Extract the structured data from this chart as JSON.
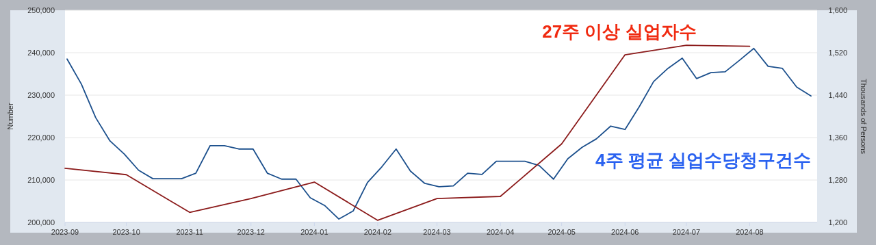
{
  "chart_data": {
    "type": "line",
    "ylabel": "Number",
    "y2label": "Thousands of Persons",
    "xlim": [
      "2023-09-01",
      "2024-09-03"
    ],
    "xticks": [
      {
        "value": "2023-09-01",
        "label": "2023-09"
      },
      {
        "value": "2023-10-01",
        "label": "2023-10"
      },
      {
        "value": "2023-11-01",
        "label": "2023-11"
      },
      {
        "value": "2023-12-01",
        "label": "2023-12"
      },
      {
        "value": "2024-01-01",
        "label": "2024-01"
      },
      {
        "value": "2024-02-01",
        "label": "2024-02"
      },
      {
        "value": "2024-03-01",
        "label": "2024-03"
      },
      {
        "value": "2024-04-01",
        "label": "2024-04"
      },
      {
        "value": "2024-05-01",
        "label": "2024-05"
      },
      {
        "value": "2024-06-01",
        "label": "2024-06"
      },
      {
        "value": "2024-07-01",
        "label": "2024-07"
      },
      {
        "value": "2024-08-01",
        "label": "2024-08"
      }
    ],
    "ylim": [
      200000,
      250000
    ],
    "yticks": [
      {
        "value": 200000,
        "label": "200,000"
      },
      {
        "value": 210000,
        "label": "210,000"
      },
      {
        "value": 220000,
        "label": "220,000"
      },
      {
        "value": 230000,
        "label": "230,000"
      },
      {
        "value": 240000,
        "label": "240,000"
      },
      {
        "value": 250000,
        "label": "250,000"
      }
    ],
    "y2lim": [
      1200,
      1600
    ],
    "y2ticks": [
      {
        "value": 1200,
        "label": "1,200"
      },
      {
        "value": 1280,
        "label": "1,280"
      },
      {
        "value": 1360,
        "label": "1,360"
      },
      {
        "value": 1440,
        "label": "1,440"
      },
      {
        "value": 1520,
        "label": "1,520"
      },
      {
        "value": 1600,
        "label": "1,600"
      }
    ],
    "grid": "y",
    "marker": "none",
    "line_style": "solid",
    "series": [
      {
        "name": "4주 평균 실업수당청구건수",
        "color": "#1b4f8c",
        "x": [
          "2023-09-02",
          "2023-09-09",
          "2023-09-16",
          "2023-09-23",
          "2023-09-30",
          "2023-10-07",
          "2023-10-14",
          "2023-10-21",
          "2023-10-28",
          "2023-11-04",
          "2023-11-11",
          "2023-11-18",
          "2023-11-25",
          "2023-12-02",
          "2023-12-09",
          "2023-12-16",
          "2023-12-23",
          "2023-12-30",
          "2024-01-06",
          "2024-01-13",
          "2024-01-20",
          "2024-01-27",
          "2024-02-03",
          "2024-02-10",
          "2024-02-17",
          "2024-02-24",
          "2024-03-02",
          "2024-03-09",
          "2024-03-16",
          "2024-03-23",
          "2024-03-30",
          "2024-04-06",
          "2024-04-13",
          "2024-04-20",
          "2024-04-27",
          "2024-05-04",
          "2024-05-11",
          "2024-05-18",
          "2024-05-25",
          "2024-06-01",
          "2024-06-08",
          "2024-06-15",
          "2024-06-22",
          "2024-06-29",
          "2024-07-06",
          "2024-07-13",
          "2024-07-20",
          "2024-07-27",
          "2024-08-03",
          "2024-08-10",
          "2024-08-17",
          "2024-08-24",
          "2024-08-31"
        ],
        "values": [
          238500,
          232600,
          224700,
          219200,
          216100,
          212300,
          210300,
          210300,
          210300,
          211600,
          218100,
          218100,
          217300,
          217300,
          211600,
          210200,
          210200,
          205800,
          204000,
          200800,
          202700,
          209400,
          213100,
          217300,
          212100,
          209200,
          208400,
          208600,
          211600,
          211300,
          214400,
          214400,
          214400,
          213400,
          210200,
          215000,
          217700,
          219700,
          222700,
          221900,
          227300,
          233200,
          236300,
          238700,
          233900,
          235300,
          235500,
          238200,
          241000,
          236800,
          236300,
          231900,
          229800
        ]
      },
      {
        "name": "27주 이상 실업자수",
        "color": "#8b1a1a",
        "axis": "y2",
        "x": [
          "2023-09-01",
          "2023-10-01",
          "2023-11-01",
          "2023-12-01",
          "2024-01-01",
          "2024-02-01",
          "2024-03-01",
          "2024-04-01",
          "2024-05-01",
          "2024-06-01",
          "2024-07-01",
          "2024-08-01"
        ],
        "values": [
          1302,
          1290,
          1219,
          1245,
          1276,
          1204,
          1245,
          1249,
          1348,
          1516,
          1534,
          1532
        ]
      }
    ]
  }
}
